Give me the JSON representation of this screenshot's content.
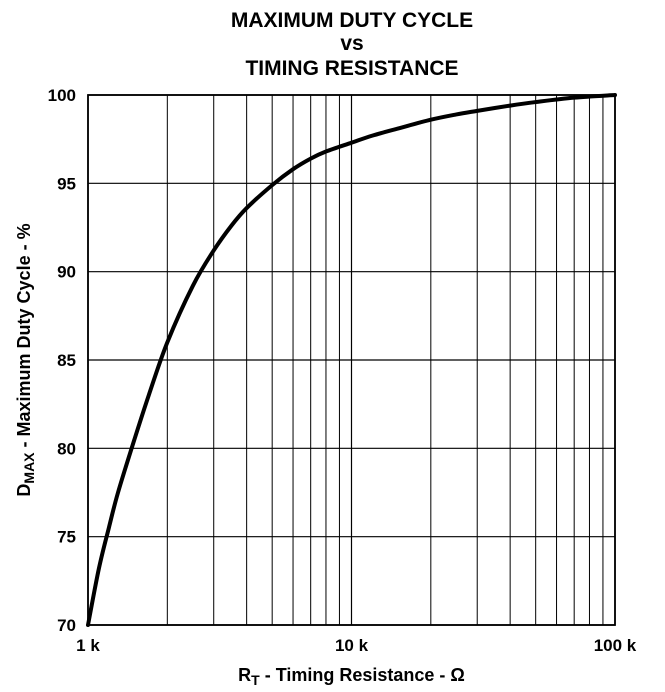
{
  "chart_data": {
    "type": "line",
    "title": [
      "MAXIMUM DUTY CYCLE",
      "vs",
      "TIMING RESISTANCE"
    ],
    "xlabel": {
      "main": "R",
      "sub": "T",
      "rest": " - Timing Resistance - Ω"
    },
    "ylabel": {
      "main": "D",
      "sub": "MAX",
      "rest": " - Maximum Duty Cycle - %"
    },
    "x_scale": "log",
    "xlim": [
      1000,
      100000
    ],
    "ylim": [
      70,
      100
    ],
    "x_ticks": [
      {
        "value": 1000,
        "label": "1 k"
      },
      {
        "value": 10000,
        "label": "10 k"
      },
      {
        "value": 100000,
        "label": "100 k"
      }
    ],
    "y_ticks": [
      {
        "value": 70,
        "label": "70"
      },
      {
        "value": 75,
        "label": "75"
      },
      {
        "value": 80,
        "label": "80"
      },
      {
        "value": 85,
        "label": "85"
      },
      {
        "value": 90,
        "label": "90"
      },
      {
        "value": 95,
        "label": "95"
      },
      {
        "value": 100,
        "label": "100"
      }
    ],
    "grid": true,
    "series": [
      {
        "x": [
          1000,
          1100,
          1200,
          1300,
          1500,
          1700,
          2000,
          2500,
          3000,
          3500,
          4000,
          5000,
          6000,
          7000,
          8000,
          10000,
          12000,
          15000,
          20000,
          25000,
          30000,
          40000,
          50000,
          70000,
          100000
        ],
        "values": [
          70.0,
          73.2,
          75.5,
          77.5,
          80.5,
          83.0,
          86.0,
          89.2,
          91.2,
          92.6,
          93.6,
          94.9,
          95.8,
          96.4,
          96.8,
          97.3,
          97.7,
          98.1,
          98.6,
          98.9,
          99.1,
          99.4,
          99.6,
          99.85,
          100.0
        ],
        "color": "#000000"
      }
    ]
  }
}
